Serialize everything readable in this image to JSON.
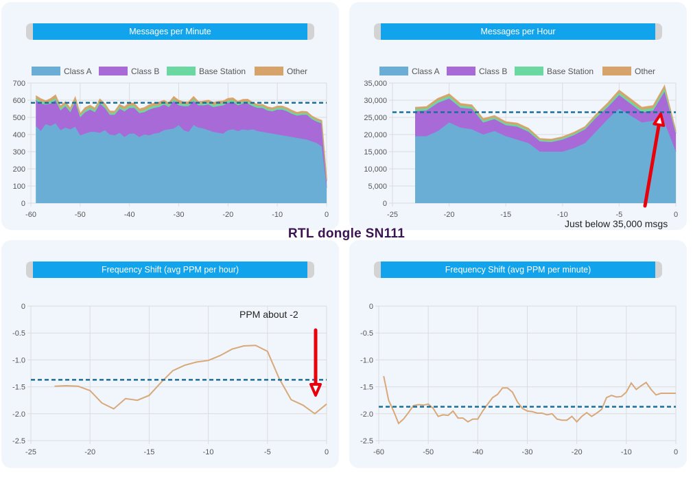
{
  "page_title": "RTL dongle SN111",
  "annotations": {
    "hour_note": "Just below 35,000 msgs",
    "ppm_note": "PPM about -2"
  },
  "colors": {
    "class_a": "#6aaed6",
    "class_b": "#a76ad6",
    "base_station": "#6ad8a0",
    "other": "#d6a46a",
    "average_line": "#1a6e9a",
    "ppm_line": "#d9a878",
    "header": "#11a3eb",
    "arrow": "#e8000b"
  },
  "chart_data": [
    {
      "id": "mpm",
      "type": "area",
      "title": "Messages per Minute",
      "stacked": true,
      "legend": [
        "Class A",
        "Class B",
        "Base Station",
        "Other"
      ],
      "legend_position": "top",
      "x_ticks": [
        -60,
        -50,
        -40,
        -30,
        -20,
        -10,
        0
      ],
      "y_ticks": [
        0,
        100,
        200,
        300,
        400,
        500,
        600,
        700
      ],
      "xlim": [
        -60,
        0
      ],
      "ylim": [
        0,
        700
      ],
      "average": 585,
      "x": [
        -59,
        -58,
        -57,
        -56,
        -55,
        -54,
        -53,
        -52,
        -51,
        -50,
        -49,
        -48,
        -47,
        -46,
        -45,
        -44,
        -43,
        -42,
        -41,
        -40,
        -39,
        -38,
        -37,
        -36,
        -35,
        -34,
        -33,
        -32,
        -31,
        -30,
        -29,
        -28,
        -27,
        -26,
        -25,
        -24,
        -23,
        -22,
        -21,
        -20,
        -19,
        -18,
        -17,
        -16,
        -15,
        -14,
        -13,
        -12,
        -11,
        -10,
        -9,
        -8,
        -7,
        -6,
        -5,
        -4,
        -3,
        -2,
        -1,
        0
      ],
      "series": [
        {
          "name": "Class A",
          "values": [
            450,
            420,
            460,
            450,
            465,
            425,
            440,
            430,
            445,
            395,
            405,
            415,
            415,
            410,
            425,
            400,
            395,
            410,
            385,
            405,
            405,
            385,
            400,
            395,
            405,
            410,
            425,
            430,
            435,
            455,
            425,
            415,
            455,
            440,
            435,
            425,
            415,
            410,
            405,
            425,
            430,
            420,
            430,
            425,
            430,
            420,
            415,
            410,
            405,
            400,
            395,
            390,
            385,
            380,
            375,
            370,
            360,
            350,
            330,
            90
          ]
        },
        {
          "name": "Class B",
          "values": [
            150,
            160,
            115,
            130,
            135,
            115,
            125,
            100,
            145,
            105,
            125,
            130,
            115,
            170,
            130,
            115,
            120,
            140,
            150,
            150,
            150,
            140,
            130,
            150,
            150,
            150,
            150,
            130,
            160,
            115,
            140,
            150,
            140,
            130,
            135,
            150,
            145,
            155,
            165,
            160,
            160,
            150,
            150,
            155,
            135,
            135,
            140,
            130,
            130,
            145,
            150,
            145,
            135,
            130,
            140,
            145,
            130,
            125,
            135,
            40
          ]
        },
        {
          "name": "Base Station",
          "values": [
            12,
            13,
            11,
            15,
            12,
            12,
            12,
            11,
            12,
            11,
            12,
            13,
            12,
            12,
            11,
            10,
            11,
            12,
            12,
            13,
            12,
            11,
            12,
            13,
            12,
            11,
            12,
            11,
            12,
            12,
            11,
            12,
            12,
            11,
            11,
            11,
            11,
            12,
            11,
            12,
            11,
            11,
            12,
            12,
            11,
            11,
            11,
            10,
            10,
            11,
            11,
            10,
            10,
            9,
            10,
            9,
            9,
            9,
            9,
            5
          ]
        },
        {
          "name": "Other",
          "values": [
            14,
            15,
            10,
            14,
            18,
            13,
            14,
            12,
            15,
            10,
            14,
            12,
            11,
            14,
            13,
            12,
            9,
            13,
            14,
            17,
            14,
            13,
            14,
            15,
            15,
            17,
            12,
            13,
            14,
            17,
            14,
            13,
            14,
            10,
            13,
            14,
            16,
            16,
            14,
            13,
            12,
            11,
            12,
            13,
            9,
            9,
            9,
            11,
            10,
            9,
            9,
            10,
            10,
            9,
            10,
            9,
            9,
            9,
            8,
            5
          ]
        }
      ]
    },
    {
      "id": "mph",
      "type": "area",
      "title": "Messages per Hour",
      "stacked": true,
      "legend": [
        "Class A",
        "Class B",
        "Base Station",
        "Other"
      ],
      "legend_position": "top",
      "x_ticks": [
        -25,
        -20,
        -15,
        -10,
        -5,
        0
      ],
      "y_ticks": [
        0,
        5000,
        10000,
        15000,
        20000,
        25000,
        30000,
        35000
      ],
      "y_tick_labels": [
        "0",
        "5,000",
        "10,000",
        "15,000",
        "20,000",
        "25,000",
        "30,000",
        "35,000"
      ],
      "xlim": [
        -25,
        0
      ],
      "ylim": [
        0,
        35000
      ],
      "average": 26500,
      "x": [
        -23,
        -22,
        -21,
        -20,
        -19,
        -18,
        -17,
        -16,
        -15,
        -14,
        -13,
        -12,
        -11,
        -10,
        -9,
        -8,
        -7,
        -6,
        -5,
        -4,
        -3,
        -2,
        -1,
        0
      ],
      "series": [
        {
          "name": "Class A",
          "values": [
            19500,
            19500,
            21000,
            23500,
            22000,
            21500,
            20000,
            21000,
            19500,
            18500,
            17500,
            15000,
            15000,
            15000,
            16000,
            17500,
            21000,
            24500,
            27500,
            25500,
            23500,
            24000,
            23500,
            15000
          ]
        },
        {
          "name": "Class B",
          "values": [
            7300,
            7500,
            8200,
            7000,
            5800,
            6000,
            3500,
            3500,
            3200,
            3800,
            3300,
            3000,
            2800,
            3500,
            3800,
            4000,
            4000,
            3500,
            4000,
            3500,
            3000,
            3000,
            9000,
            5300
          ]
        },
        {
          "name": "Base Station",
          "values": [
            600,
            600,
            700,
            700,
            600,
            600,
            600,
            500,
            500,
            500,
            500,
            400,
            400,
            400,
            400,
            400,
            500,
            600,
            700,
            700,
            700,
            700,
            900,
            400
          ]
        },
        {
          "name": "Other",
          "values": [
            500,
            500,
            600,
            600,
            600,
            500,
            500,
            500,
            500,
            500,
            500,
            400,
            400,
            400,
            400,
            400,
            500,
            600,
            700,
            700,
            700,
            700,
            800,
            300
          ]
        }
      ]
    },
    {
      "id": "ppmh",
      "type": "line",
      "title": "Frequency Shift (avg PPM per hour)",
      "x_ticks": [
        -25,
        -20,
        -15,
        -10,
        -5,
        0
      ],
      "y_ticks": [
        0,
        -0.5,
        -1.0,
        -1.5,
        -2.0,
        -2.5
      ],
      "y_tick_labels": [
        "0",
        "-0.5",
        "-1.0",
        "-1.5",
        "-2.0",
        "-2.5"
      ],
      "xlim": [
        -25,
        0
      ],
      "ylim": [
        -2.5,
        0
      ],
      "average": -1.37,
      "x": [
        -23,
        -22,
        -21,
        -20,
        -19,
        -18,
        -17,
        -16,
        -15,
        -14,
        -13,
        -12,
        -11,
        -10,
        -9,
        -8,
        -7,
        -6,
        -5,
        -4,
        -3,
        -2,
        -1,
        0
      ],
      "series": [
        {
          "name": "",
          "values": [
            -1.49,
            -1.48,
            -1.49,
            -1.57,
            -1.8,
            -1.91,
            -1.72,
            -1.75,
            -1.66,
            -1.42,
            -1.2,
            -1.1,
            -1.04,
            -1.01,
            -0.92,
            -0.8,
            -0.74,
            -0.73,
            -0.84,
            -1.35,
            -1.74,
            -1.84,
            -2.0,
            -1.82
          ]
        }
      ]
    },
    {
      "id": "ppmm",
      "type": "line",
      "title": "Frequency Shift (avg PPM per minute)",
      "x_ticks": [
        -60,
        -50,
        -40,
        -30,
        -20,
        -10,
        0
      ],
      "y_ticks": [
        0,
        -0.5,
        -1.0,
        -1.5,
        -2.0,
        -2.5
      ],
      "y_tick_labels": [
        "0",
        "-0.5",
        "-1.0",
        "-1.5",
        "-2.0",
        "-2.5"
      ],
      "xlim": [
        -60,
        0
      ],
      "ylim": [
        -2.5,
        0
      ],
      "average": -1.87,
      "x": [
        -59,
        -58,
        -57,
        -56,
        -55,
        -54,
        -53,
        -52,
        -51,
        -50,
        -49,
        -48,
        -47,
        -46,
        -45,
        -44,
        -43,
        -42,
        -41,
        -40,
        -39,
        -38,
        -37,
        -36,
        -35,
        -34,
        -33,
        -32,
        -31,
        -30,
        -29,
        -28,
        -27,
        -26,
        -25,
        -24,
        -23,
        -22,
        -21,
        -20,
        -19,
        -18,
        -17,
        -16,
        -15,
        -14,
        -13,
        -12,
        -11,
        -10,
        -9,
        -8,
        -7,
        -6,
        -5,
        -4,
        -3,
        -2,
        -1,
        0
      ],
      "series": [
        {
          "name": "",
          "values": [
            -1.3,
            -1.75,
            -1.95,
            -2.18,
            -2.1,
            -1.98,
            -1.85,
            -1.83,
            -1.84,
            -1.82,
            -1.9,
            -2.05,
            -2.02,
            -2.03,
            -1.95,
            -2.08,
            -2.08,
            -2.15,
            -2.1,
            -2.1,
            -1.95,
            -1.82,
            -1.7,
            -1.64,
            -1.52,
            -1.52,
            -1.6,
            -1.78,
            -1.9,
            -1.95,
            -1.96,
            -1.99,
            -1.99,
            -2.02,
            -2.0,
            -2.1,
            -2.12,
            -2.12,
            -2.05,
            -2.15,
            -2.05,
            -1.98,
            -2.05,
            -1.99,
            -1.92,
            -1.7,
            -1.66,
            -1.69,
            -1.68,
            -1.6,
            -1.43,
            -1.55,
            -1.48,
            -1.42,
            -1.55,
            -1.65,
            -1.62,
            -1.62,
            -1.62,
            -1.62
          ]
        }
      ]
    }
  ]
}
